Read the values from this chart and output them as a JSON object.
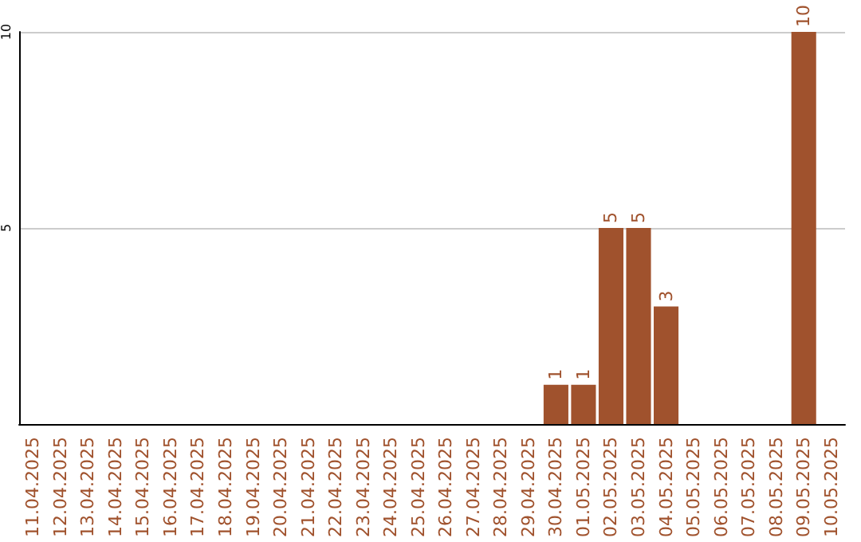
{
  "chart_data": {
    "type": "bar",
    "categories": [
      "11.04.2025",
      "12.04.2025",
      "13.04.2025",
      "14.04.2025",
      "15.04.2025",
      "16.04.2025",
      "17.04.2025",
      "18.04.2025",
      "19.04.2025",
      "20.04.2025",
      "21.04.2025",
      "22.04.2025",
      "23.04.2025",
      "24.04.2025",
      "25.04.2025",
      "26.04.2025",
      "27.04.2025",
      "28.04.2025",
      "29.04.2025",
      "30.04.2025",
      "01.05.2025",
      "02.05.2025",
      "03.05.2025",
      "04.05.2025",
      "05.05.2025",
      "06.05.2025",
      "07.05.2025",
      "08.05.2025",
      "09.05.2025",
      "10.05.2025"
    ],
    "values": [
      0,
      0,
      0,
      0,
      0,
      0,
      0,
      0,
      0,
      0,
      0,
      0,
      0,
      0,
      0,
      0,
      0,
      0,
      0,
      1,
      1,
      5,
      5,
      3,
      0,
      0,
      0,
      0,
      10,
      0
    ],
    "value_labels": [
      null,
      null,
      null,
      null,
      null,
      null,
      null,
      null,
      null,
      null,
      null,
      null,
      null,
      null,
      null,
      null,
      null,
      null,
      null,
      "1",
      "1",
      "5",
      "5",
      "3",
      null,
      null,
      null,
      null,
      "10",
      null
    ],
    "color": "#a0522d",
    "ylim": [
      0,
      10
    ],
    "yticks": [
      5,
      10
    ],
    "grid": "y"
  }
}
